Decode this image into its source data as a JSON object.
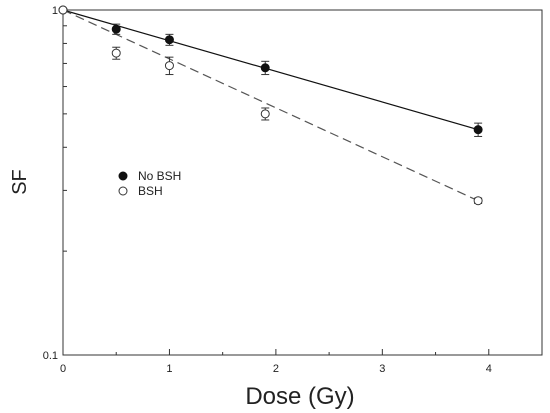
{
  "chart_data": {
    "type": "scatter",
    "xlabel": "Dose (Gy)",
    "ylabel": "SF",
    "xlim": [
      0,
      4.5
    ],
    "ylim": [
      0.1,
      1
    ],
    "y_scale": "log",
    "grid": false,
    "legend_position": "middle-left",
    "x_ticks": [
      {
        "value": 0,
        "label": "0"
      },
      {
        "value": 1,
        "label": "1"
      },
      {
        "value": 2,
        "label": "2"
      },
      {
        "value": 3,
        "label": "3"
      },
      {
        "value": 4,
        "label": "4"
      }
    ],
    "y_ticks": [
      {
        "value": 0.1,
        "label": "0.1"
      },
      {
        "value": 1,
        "label": "1"
      }
    ],
    "series": [
      {
        "name": "No BSH",
        "marker": "filled-circle",
        "line_style": "solid",
        "color": "#111111",
        "x": [
          0,
          0.5,
          1.0,
          1.9,
          3.9
        ],
        "y": [
          1.0,
          0.88,
          0.82,
          0.68,
          0.45
        ],
        "err": [
          0,
          0.03,
          0.03,
          0.03,
          0.02
        ],
        "fit_x": [
          0,
          3.9
        ],
        "fit_y": [
          1.0,
          0.45
        ]
      },
      {
        "name": "BSH",
        "marker": "open-circle",
        "line_style": "dashed",
        "color": "#555555",
        "x": [
          0,
          0.5,
          1.0,
          1.9,
          3.9
        ],
        "y": [
          1.0,
          0.75,
          0.69,
          0.5,
          0.28
        ],
        "err": [
          0,
          0.03,
          0.04,
          0.02,
          0.005
        ],
        "fit_x": [
          0,
          3.9
        ],
        "fit_y": [
          1.0,
          0.28
        ]
      }
    ]
  }
}
